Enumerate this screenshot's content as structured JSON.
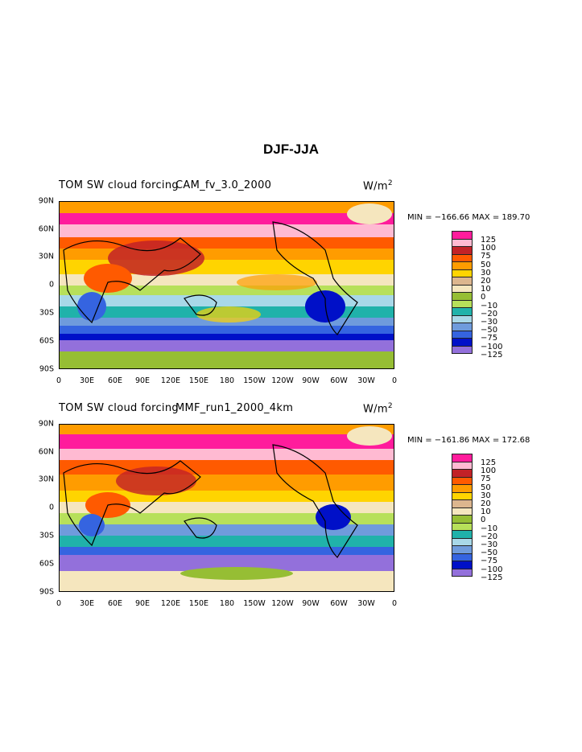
{
  "title": "DJF-JJA",
  "panels": [
    {
      "title_left": "TOM SW cloud forcing",
      "title_center": "CAM_fv_3.0_2000",
      "units": "W/m",
      "units_sup": "2",
      "stats": "MIN = −166.66 MAX = 189.70"
    },
    {
      "title_left": "TOM SW cloud forcing",
      "title_center": "MMF_run1_2000_4km",
      "units": "W/m",
      "units_sup": "2",
      "stats": "MIN = −161.86 MAX = 172.68"
    }
  ],
  "lat_labels": [
    "90N",
    "60N",
    "30N",
    "0",
    "30S",
    "60S",
    "90S"
  ],
  "lon_labels": [
    "0",
    "30E",
    "60E",
    "90E",
    "120E",
    "150E",
    "180",
    "150W",
    "120W",
    "90W",
    "60W",
    "30W",
    "0"
  ],
  "colorbar": {
    "labels": [
      "125",
      "100",
      "75",
      "50",
      "30",
      "20",
      "10",
      "0",
      "−10",
      "−20",
      "−30",
      "−50",
      "−75",
      "−100",
      "−125"
    ],
    "colors": [
      "#ff1c9c",
      "#ffbad2",
      "#c22227",
      "#ff5a00",
      "#ff9c00",
      "#ffd400",
      "#dcb68e",
      "#f5e6be",
      "#96be34",
      "#b7e05a",
      "#20b2aa",
      "#a8d8e8",
      "#6f9bdc",
      "#3564e0",
      "#0010c8",
      "#9370db"
    ]
  }
}
